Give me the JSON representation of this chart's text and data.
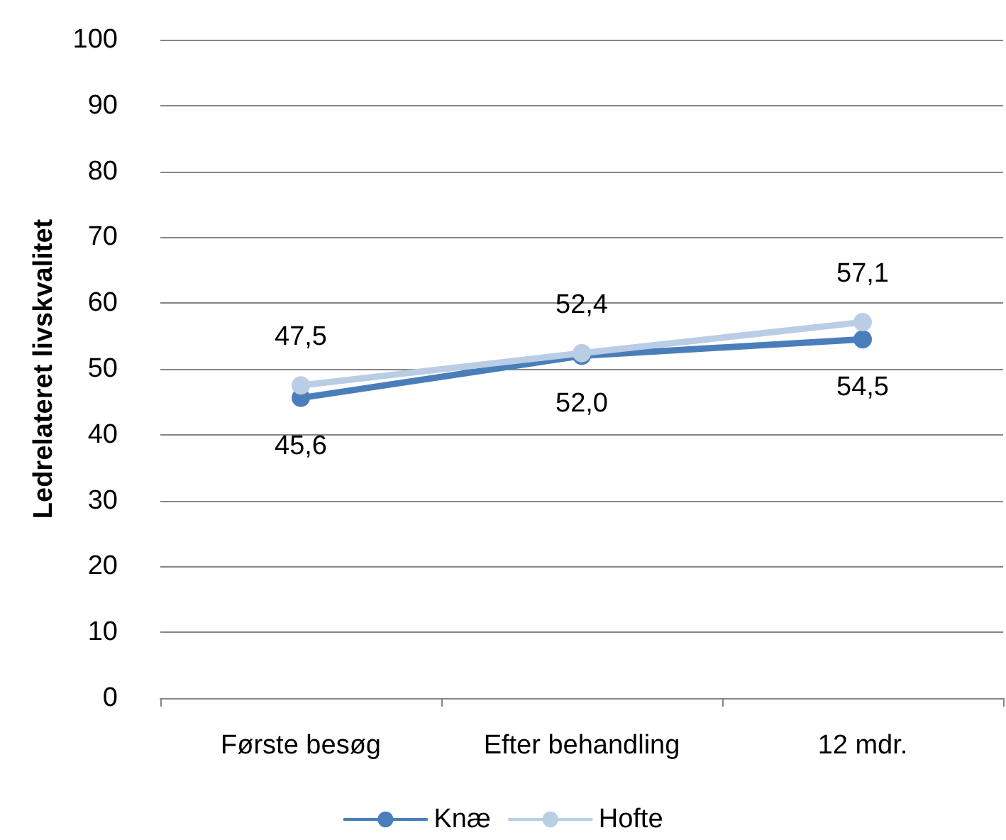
{
  "chart_data": {
    "type": "line",
    "ylabel": "Ledrelateret livskvalitet",
    "categories": [
      "Første besøg",
      "Efter behandling",
      "12 mdr."
    ],
    "series": [
      {
        "name": "Knæ",
        "color": "#4a7ebb",
        "values": [
          45.6,
          52.0,
          54.5
        ],
        "value_labels": [
          "45,6",
          "52,0",
          "54,5"
        ]
      },
      {
        "name": "Hofte",
        "color": "#b9cde5",
        "values": [
          47.5,
          52.4,
          57.1
        ],
        "value_labels": [
          "47,5",
          "52,4",
          "57,1"
        ]
      }
    ],
    "ylim": [
      0,
      100
    ],
    "yticks": [
      0,
      10,
      20,
      30,
      40,
      50,
      60,
      70,
      80,
      90,
      100
    ],
    "grid": "y",
    "legend": "bottom",
    "marker": "circle",
    "line_style": "solid"
  }
}
